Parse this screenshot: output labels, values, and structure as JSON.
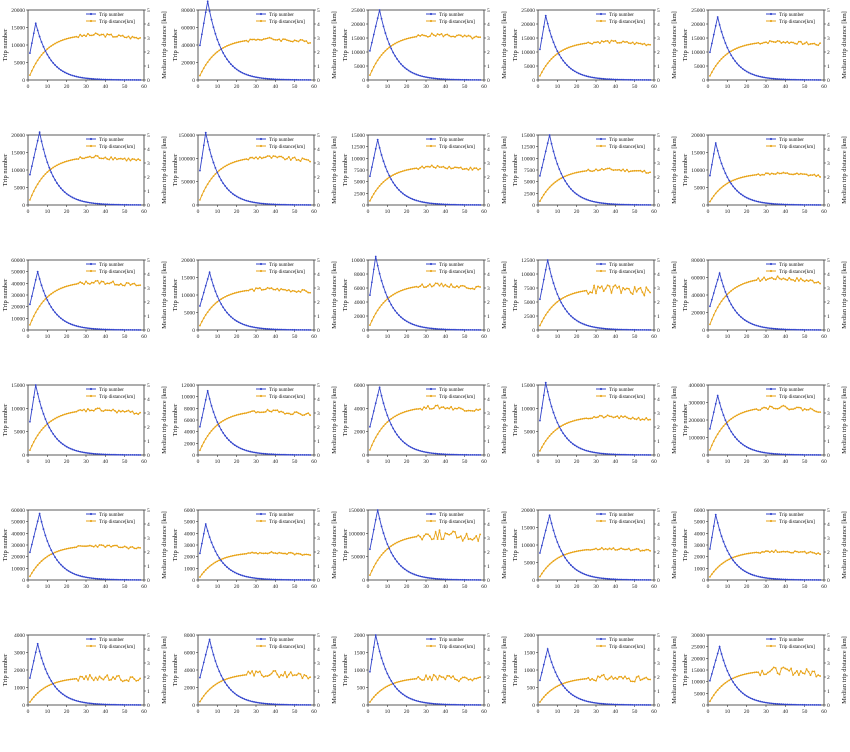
{
  "legend": {
    "trip_number": "Trip number",
    "trip_distance": "Trip distance[km]"
  },
  "axis_labels": {
    "left": "Trip number",
    "right": "Median trip distance [km]"
  },
  "colors": {
    "trip_number": "#3345cc",
    "trip_distance": "#e8a317"
  },
  "chart_data": [
    {
      "type": "line",
      "left_ticks": [
        0,
        5000,
        10000,
        15000,
        20000
      ],
      "peak": 16200,
      "dist_plateau": 3.3
    },
    {
      "type": "line",
      "left_ticks": [
        0,
        20000,
        40000,
        60000,
        80000
      ],
      "peak": 90000,
      "dist_plateau": 3.0
    },
    {
      "type": "line",
      "left_ticks": [
        0,
        5000,
        10000,
        15000,
        20000,
        25000
      ],
      "peak": 25000,
      "dist_plateau": 3.3
    },
    {
      "type": "line",
      "left_ticks": [
        0,
        5000,
        10000,
        15000,
        20000,
        25000
      ],
      "peak": 23000,
      "dist_plateau": 2.8
    },
    {
      "type": "line",
      "left_ticks": [
        0,
        5000,
        10000,
        15000,
        20000,
        25000
      ],
      "peak": 22500,
      "dist_plateau": 2.8
    },
    {
      "type": "line",
      "left_ticks": [
        0,
        5000,
        10000,
        15000,
        20000
      ],
      "peak": 20800,
      "dist_plateau": 3.5
    },
    {
      "type": "line",
      "left_ticks": [
        0,
        50000,
        100000,
        150000
      ],
      "peak": 155000,
      "dist_plateau": 3.5
    },
    {
      "type": "line",
      "left_ticks": [
        0,
        2500,
        5000,
        7500,
        10000,
        12500,
        15000
      ],
      "peak": 14000,
      "dist_plateau": 2.8
    },
    {
      "type": "line",
      "left_ticks": [
        0,
        2500,
        5000,
        7500,
        10000,
        12500,
        15000
      ],
      "peak": 15000,
      "dist_plateau": 2.6
    },
    {
      "type": "line",
      "left_ticks": [
        0,
        5000,
        10000,
        15000,
        20000
      ],
      "peak": 17700,
      "dist_plateau": 2.3
    },
    {
      "type": "line",
      "left_ticks": [
        0,
        10000,
        20000,
        30000,
        40000,
        50000,
        60000
      ],
      "peak": 50000,
      "dist_plateau": 3.5
    },
    {
      "type": "line",
      "left_ticks": [
        0,
        5000,
        10000,
        15000,
        20000
      ],
      "peak": 16500,
      "dist_plateau": 3.0
    },
    {
      "type": "line",
      "left_ticks": [
        0,
        2000,
        4000,
        6000,
        8000,
        10000
      ],
      "peak": 10500,
      "dist_plateau": 3.3
    },
    {
      "type": "line",
      "left_ticks": [
        0,
        2500,
        5000,
        7500,
        10000,
        12500
      ],
      "peak": 12500,
      "dist_plateau": 3.0
    },
    {
      "type": "line",
      "left_ticks": [
        0,
        20000,
        40000,
        60000,
        80000
      ],
      "peak": 65000,
      "dist_plateau": 3.8
    },
    {
      "type": "line",
      "left_ticks": [
        0,
        5000,
        10000,
        15000
      ],
      "peak": 15000,
      "dist_plateau": 3.3
    },
    {
      "type": "line",
      "left_ticks": [
        0,
        2000,
        4000,
        6000,
        8000,
        10000,
        12000
      ],
      "peak": 11000,
      "dist_plateau": 3.2
    },
    {
      "type": "line",
      "left_ticks": [
        0,
        2000,
        4000,
        6000
      ],
      "peak": 5800,
      "dist_plateau": 3.5
    },
    {
      "type": "line",
      "left_ticks": [
        0,
        5000,
        10000,
        15000
      ],
      "peak": 15500,
      "dist_plateau": 2.8
    },
    {
      "type": "line",
      "left_ticks": [
        0,
        100000,
        200000,
        300000,
        400000
      ],
      "peak": 340000,
      "dist_plateau": 3.5
    },
    {
      "type": "line",
      "left_ticks": [
        0,
        10000,
        20000,
        30000,
        40000,
        50000,
        60000
      ],
      "peak": 57000,
      "dist_plateau": 2.5
    },
    {
      "type": "line",
      "left_ticks": [
        0,
        1000,
        2000,
        3000,
        4000,
        5000,
        6000
      ],
      "peak": 4800,
      "dist_plateau": 2.0
    },
    {
      "type": "line",
      "left_ticks": [
        0,
        50000,
        100000,
        150000
      ],
      "peak": 150000,
      "dist_plateau": 3.3
    },
    {
      "type": "line",
      "left_ticks": [
        0,
        5000,
        10000,
        15000,
        20000
      ],
      "peak": 18500,
      "dist_plateau": 2.3
    },
    {
      "type": "line",
      "left_ticks": [
        0,
        1000,
        2000,
        3000,
        4000,
        5000,
        6000
      ],
      "peak": 5600,
      "dist_plateau": 2.1
    },
    {
      "type": "line",
      "left_ticks": [
        0,
        1000,
        2000,
        3000,
        4000
      ],
      "peak": 3500,
      "dist_plateau": 2.0
    },
    {
      "type": "line",
      "left_ticks": [
        0,
        2000,
        4000,
        6000,
        8000
      ],
      "peak": 7500,
      "dist_plateau": 2.3
    },
    {
      "type": "line",
      "left_ticks": [
        0,
        500,
        1000,
        1500,
        2000
      ],
      "peak": 2000,
      "dist_plateau": 2.0
    },
    {
      "type": "line",
      "left_ticks": [
        0,
        500,
        1000,
        1500,
        2000
      ],
      "peak": 1600,
      "dist_plateau": 2.0
    },
    {
      "type": "line",
      "left_ticks": [
        0,
        5000,
        10000,
        15000,
        20000,
        25000,
        30000
      ],
      "peak": 25000,
      "dist_plateau": 2.5
    }
  ],
  "x_ticks": [
    0,
    10,
    20,
    30,
    40,
    50,
    60
  ],
  "right_ticks": [
    0,
    1,
    2,
    3,
    4,
    5
  ]
}
